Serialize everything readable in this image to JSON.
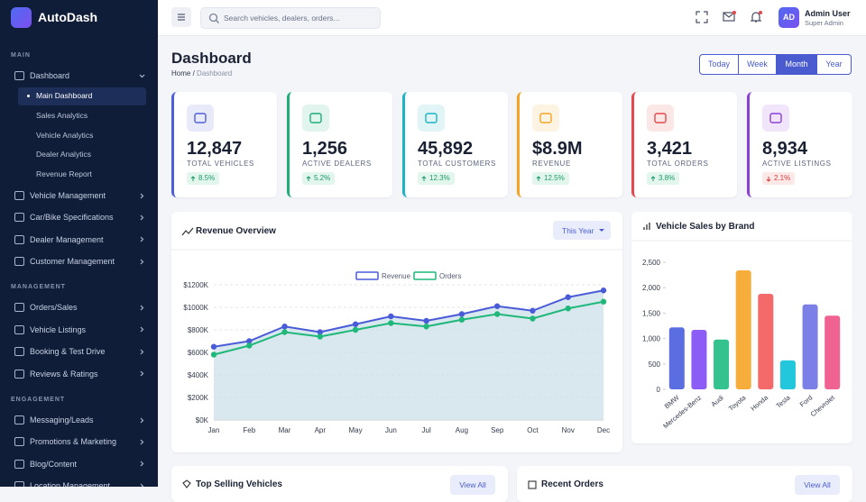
{
  "sidebar": {
    "brand": "AutoDash",
    "sections": [
      {
        "title": "MAIN",
        "items": [
          {
            "label": "Dashboard",
            "expanded": true,
            "children": [
              {
                "label": "Main Dashboard",
                "active": true
              },
              {
                "label": "Sales Analytics"
              },
              {
                "label": "Vehicle Analytics"
              },
              {
                "label": "Dealer Analytics"
              },
              {
                "label": "Revenue Report"
              }
            ]
          },
          {
            "label": "Vehicle Management"
          },
          {
            "label": "Car/Bike Specifications"
          },
          {
            "label": "Dealer Management"
          },
          {
            "label": "Customer Management"
          }
        ]
      },
      {
        "title": "MANAGEMENT",
        "items": [
          {
            "label": "Orders/Sales"
          },
          {
            "label": "Vehicle Listings"
          },
          {
            "label": "Booking & Test Drive"
          },
          {
            "label": "Reviews & Ratings"
          }
        ]
      },
      {
        "title": "ENGAGEMENT",
        "items": [
          {
            "label": "Messaging/Leads"
          },
          {
            "label": "Promotions & Marketing"
          },
          {
            "label": "Blog/Content"
          },
          {
            "label": "Location Management"
          }
        ]
      }
    ]
  },
  "header": {
    "search_placeholder": "Search vehicles, dealers, orders...",
    "avatar": "AD",
    "user_name": "Admin User",
    "user_role": "Super Admin"
  },
  "page": {
    "title": "Dashboard",
    "breadcrumb": [
      "Home",
      "Dashboard"
    ],
    "breadcrumb_separator": "/",
    "periods": [
      "Today",
      "Week",
      "Month",
      "Year"
    ],
    "active_period": "Month"
  },
  "stats": [
    {
      "value": "12,847",
      "label": "TOTAL VEHICLES",
      "change": "8.5%",
      "trend": "up",
      "color": "#4f5fd8"
    },
    {
      "value": "1,256",
      "label": "ACTIVE DEALERS",
      "change": "5.2%",
      "trend": "up",
      "color": "#1fae78"
    },
    {
      "value": "45,892",
      "label": "TOTAL CUSTOMERS",
      "change": "12.3%",
      "trend": "up",
      "color": "#1bb3c6"
    },
    {
      "value": "$8.9M",
      "label": "REVENUE",
      "change": "12.5%",
      "trend": "up",
      "color": "#f3a425"
    },
    {
      "value": "3,421",
      "label": "TOTAL ORDERS",
      "change": "3.8%",
      "trend": "up",
      "color": "#e5484d"
    },
    {
      "value": "8,934",
      "label": "ACTIVE LISTINGS",
      "change": "2.1%",
      "trend": "down",
      "color": "#8b3fd9"
    }
  ],
  "revenue_chart": {
    "type": "line",
    "title": "Revenue Overview",
    "filter": "This Year",
    "categories": [
      "Jan",
      "Feb",
      "Mar",
      "Apr",
      "May",
      "Jun",
      "Jul",
      "Aug",
      "Sep",
      "Oct",
      "Nov",
      "Dec"
    ],
    "series": [
      {
        "name": "Revenue",
        "color": "#4a5bd8",
        "values": [
          650,
          700,
          830,
          780,
          850,
          920,
          880,
          940,
          1010,
          970,
          1090,
          1150
        ]
      },
      {
        "name": "Orders",
        "color": "#1fb87a",
        "values": [
          580,
          660,
          780,
          740,
          800,
          860,
          830,
          890,
          940,
          900,
          990,
          1050
        ]
      }
    ],
    "ylim": [
      0,
      1200
    ],
    "yticks": [
      {
        "value": 0,
        "label": "$0K"
      },
      {
        "value": 200,
        "label": "$200K"
      },
      {
        "value": 400,
        "label": "$400K"
      },
      {
        "value": 600,
        "label": "$600K"
      },
      {
        "value": 800,
        "label": "$800K"
      },
      {
        "value": 1000,
        "label": "$1000K"
      },
      {
        "value": 1200,
        "label": "$1200K"
      }
    ],
    "grid": true,
    "legend": "top"
  },
  "brand_chart": {
    "type": "bar",
    "title": "Vehicle Sales by Brand",
    "categories": [
      "BMW",
      "Mercedes-Benz",
      "Audi",
      "Toyota",
      "Honda",
      "Tesla",
      "Ford",
      "Chevrolet"
    ],
    "values": [
      1220,
      1170,
      980,
      2340,
      1880,
      570,
      1670,
      1450
    ],
    "colors": [
      "#5b6ee1",
      "#8b5cf6",
      "#34c38f",
      "#f6ad3b",
      "#f46a6a",
      "#22c7dc",
      "#7c7fe6",
      "#f06292"
    ],
    "ylim": [
      0,
      2500
    ],
    "yticks": [
      0,
      500,
      {
        "value": 1000,
        "label": "1,000"
      },
      {
        "value": 1500,
        "label": "1,500"
      },
      {
        "value": 2000,
        "label": "2,000"
      },
      {
        "value": 2500,
        "label": "2,500"
      }
    ],
    "grid": false
  },
  "panels": [
    {
      "title": "Top Selling Vehicles",
      "action": "View All"
    },
    {
      "title": "Recent Orders",
      "action": "View All"
    }
  ]
}
